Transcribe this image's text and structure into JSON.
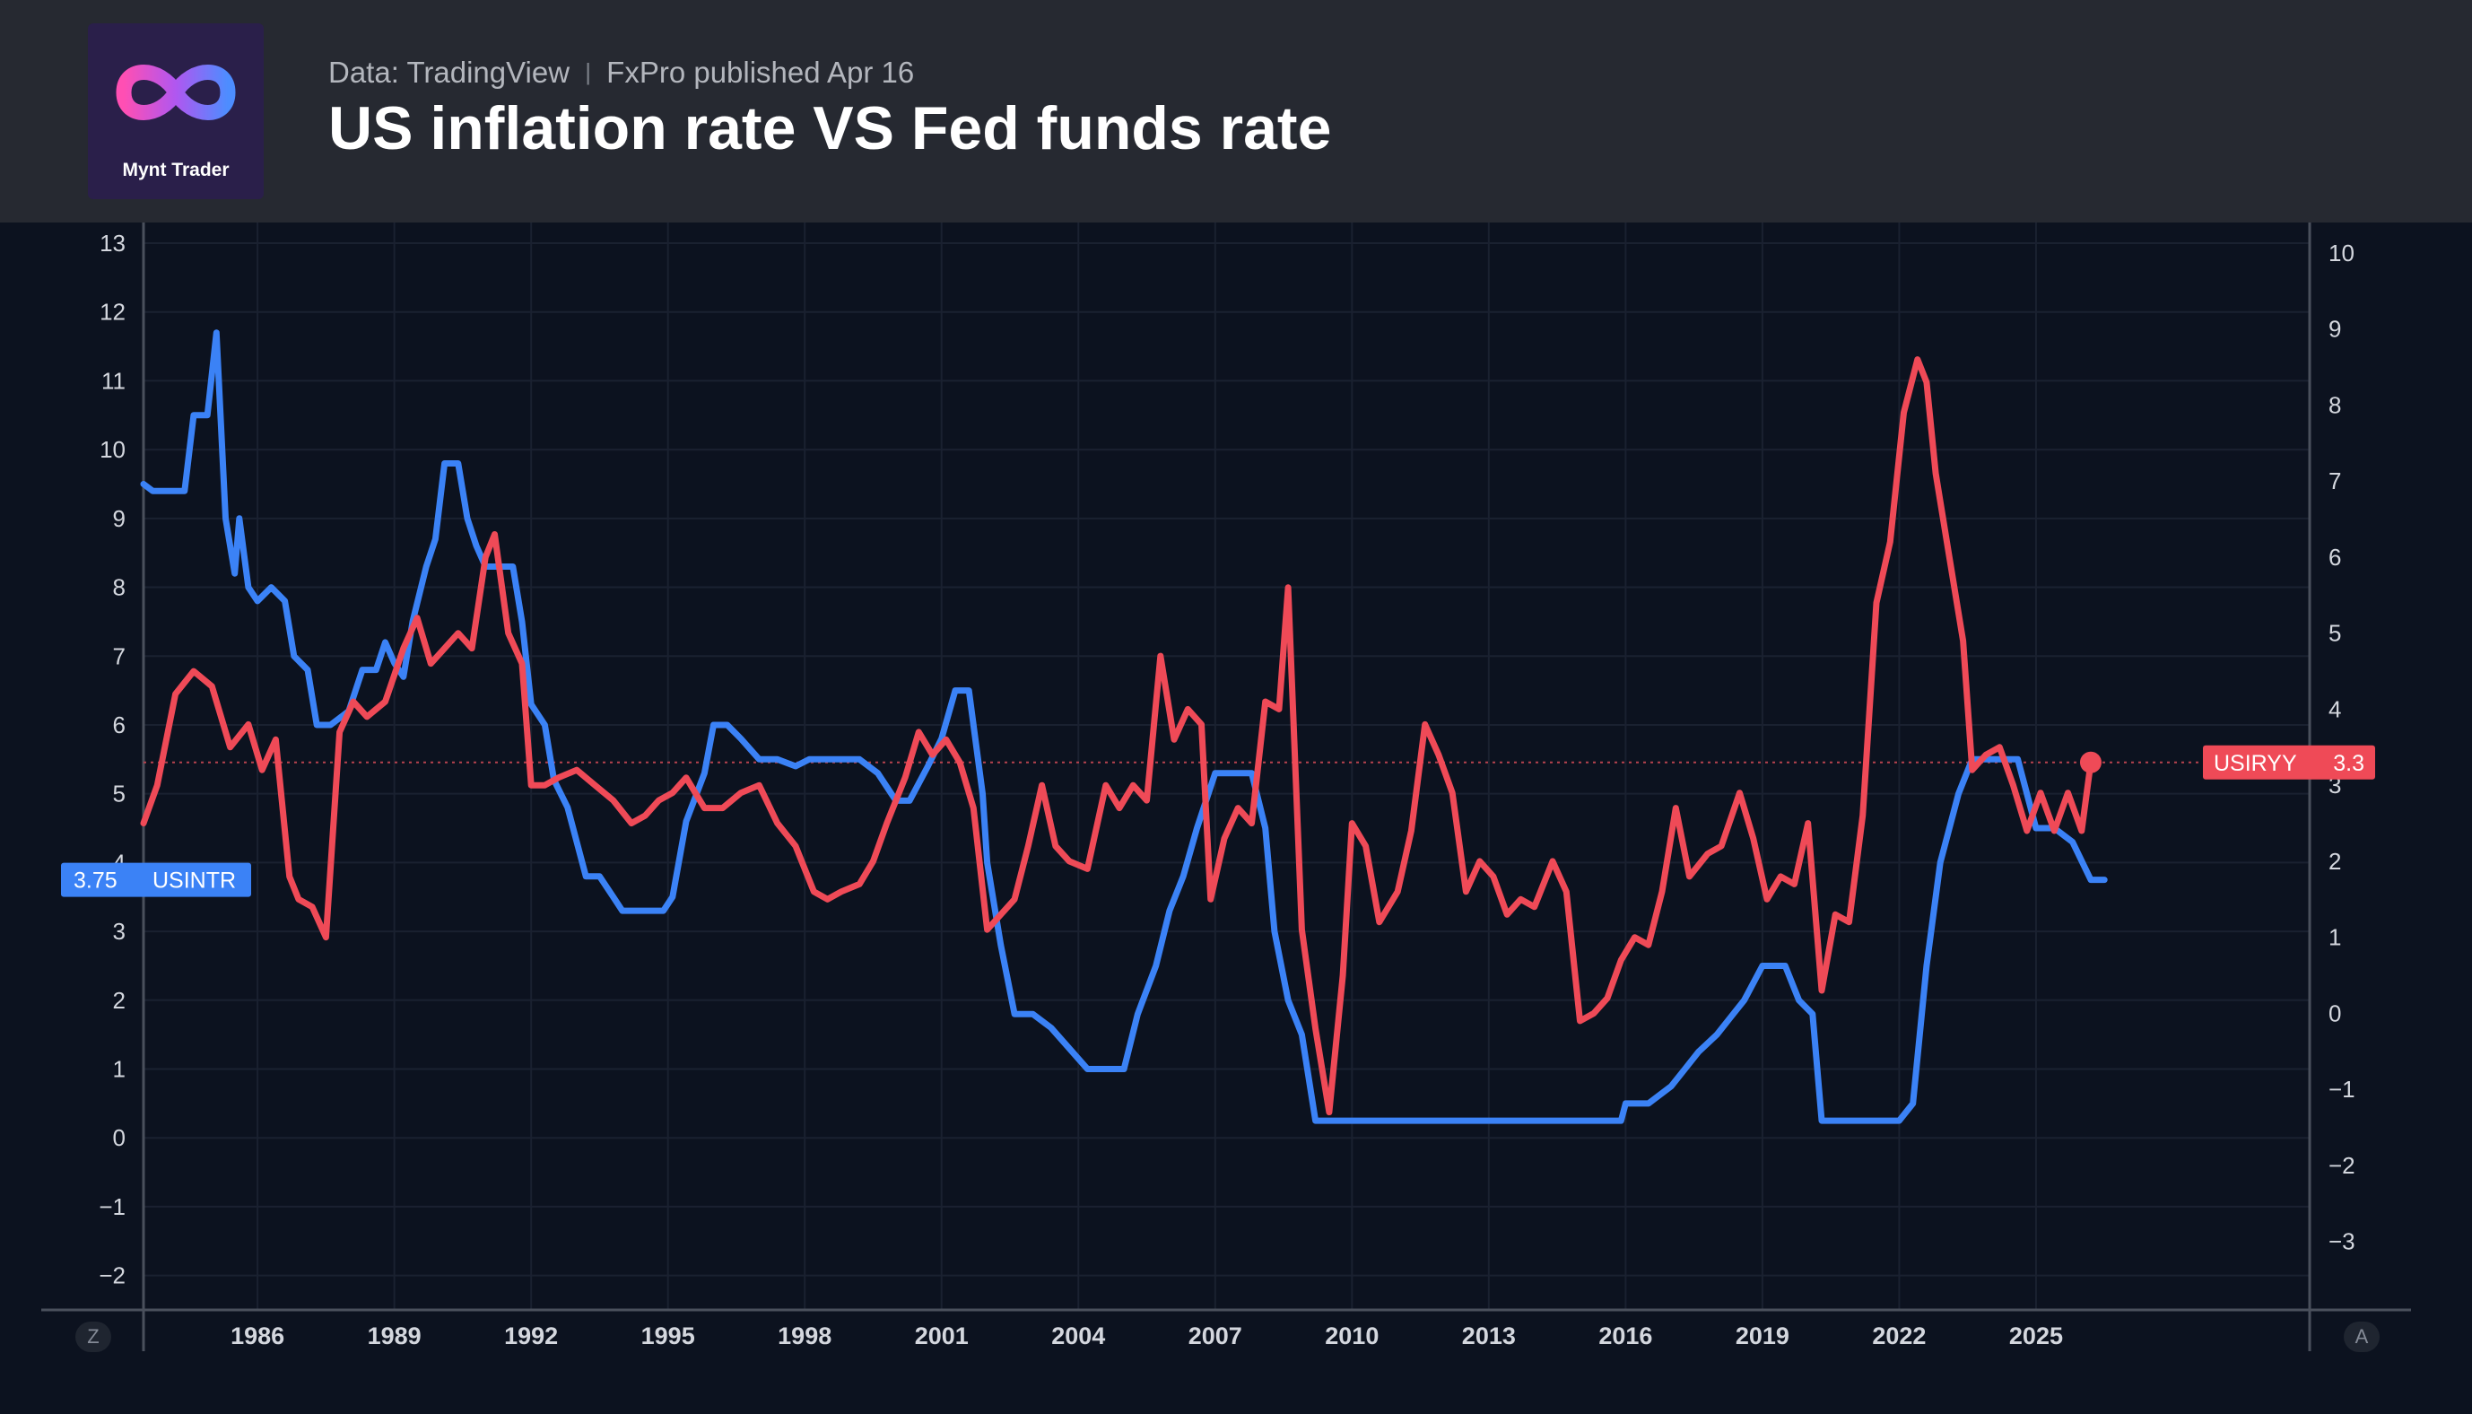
{
  "header": {
    "logo_text": "Mynt Trader",
    "source": "Data: TradingView",
    "published": "FxPro published Apr 16",
    "title": "US inflation rate VS Fed funds rate"
  },
  "controls": {
    "left_mode": "Z",
    "right_mode": "A"
  },
  "chart_data": {
    "type": "line",
    "x_ticks": [
      "1986",
      "1989",
      "1992",
      "1995",
      "1998",
      "2001",
      "2004",
      "2007",
      "2010",
      "2013",
      "2016",
      "2019",
      "2022",
      "2025"
    ],
    "left_axis": {
      "ticks": [
        -2,
        -1,
        0,
        1,
        2,
        3,
        4,
        5,
        6,
        7,
        8,
        9,
        10,
        11,
        12,
        13
      ],
      "range": [
        -2.5,
        13.3
      ]
    },
    "right_axis": {
      "ticks": [
        -3,
        -2,
        -1,
        0,
        1,
        2,
        3,
        4,
        5,
        6,
        7,
        8,
        9,
        10
      ],
      "range": [
        -3.9,
        10.4
      ]
    },
    "series": [
      {
        "name": "USINTR",
        "axis": "left",
        "color": "#3b82f6",
        "last_value": "3.75",
        "points": [
          [
            1983.5,
            9.5
          ],
          [
            1983.7,
            9.4
          ],
          [
            1984.0,
            9.4
          ],
          [
            1984.4,
            9.4
          ],
          [
            1984.6,
            10.5
          ],
          [
            1984.9,
            10.5
          ],
          [
            1985.1,
            11.7
          ],
          [
            1985.3,
            9.0
          ],
          [
            1985.5,
            8.2
          ],
          [
            1985.6,
            9.0
          ],
          [
            1985.8,
            8.0
          ],
          [
            1986.0,
            7.8
          ],
          [
            1986.3,
            8.0
          ],
          [
            1986.6,
            7.8
          ],
          [
            1986.8,
            7.0
          ],
          [
            1987.1,
            6.8
          ],
          [
            1987.3,
            6.0
          ],
          [
            1987.6,
            6.0
          ],
          [
            1988.0,
            6.2
          ],
          [
            1988.3,
            6.8
          ],
          [
            1988.6,
            6.8
          ],
          [
            1988.8,
            7.2
          ],
          [
            1989.0,
            6.9
          ],
          [
            1989.2,
            6.7
          ],
          [
            1989.4,
            7.5
          ],
          [
            1989.7,
            8.3
          ],
          [
            1989.9,
            8.7
          ],
          [
            1990.1,
            9.8
          ],
          [
            1990.4,
            9.8
          ],
          [
            1990.6,
            9.0
          ],
          [
            1990.8,
            8.6
          ],
          [
            1991.0,
            8.3
          ],
          [
            1991.3,
            8.3
          ],
          [
            1991.6,
            8.3
          ],
          [
            1991.8,
            7.5
          ],
          [
            1992.0,
            6.3
          ],
          [
            1992.3,
            6.0
          ],
          [
            1992.5,
            5.2
          ],
          [
            1992.8,
            4.8
          ],
          [
            1993.0,
            4.3
          ],
          [
            1993.2,
            3.8
          ],
          [
            1993.5,
            3.8
          ],
          [
            1993.8,
            3.5
          ],
          [
            1994.0,
            3.3
          ],
          [
            1994.5,
            3.3
          ],
          [
            1994.9,
            3.3
          ],
          [
            1995.1,
            3.5
          ],
          [
            1995.4,
            4.6
          ],
          [
            1995.8,
            5.3
          ],
          [
            1996.0,
            6.0
          ],
          [
            1996.3,
            6.0
          ],
          [
            1996.6,
            5.8
          ],
          [
            1997.0,
            5.5
          ],
          [
            1997.4,
            5.5
          ],
          [
            1997.8,
            5.4
          ],
          [
            1998.1,
            5.5
          ],
          [
            1998.4,
            5.5
          ],
          [
            1998.9,
            5.5
          ],
          [
            1999.2,
            5.5
          ],
          [
            1999.6,
            5.3
          ],
          [
            2000.0,
            4.9
          ],
          [
            2000.3,
            4.9
          ],
          [
            2000.7,
            5.4
          ],
          [
            2001.0,
            5.8
          ],
          [
            2001.3,
            6.5
          ],
          [
            2001.6,
            6.5
          ],
          [
            2001.9,
            5.0
          ],
          [
            2002.0,
            4.0
          ],
          [
            2002.3,
            2.8
          ],
          [
            2002.6,
            1.8
          ],
          [
            2003.0,
            1.8
          ],
          [
            2003.4,
            1.6
          ],
          [
            2003.8,
            1.3
          ],
          [
            2004.2,
            1.0
          ],
          [
            2004.6,
            1.0
          ],
          [
            2005.0,
            1.0
          ],
          [
            2005.3,
            1.8
          ],
          [
            2005.7,
            2.5
          ],
          [
            2006.0,
            3.3
          ],
          [
            2006.3,
            3.8
          ],
          [
            2006.6,
            4.5
          ],
          [
            2007.0,
            5.3
          ],
          [
            2007.4,
            5.3
          ],
          [
            2007.8,
            5.3
          ],
          [
            2008.1,
            4.5
          ],
          [
            2008.3,
            3.0
          ],
          [
            2008.6,
            2.0
          ],
          [
            2008.9,
            1.5
          ],
          [
            2009.2,
            0.25
          ],
          [
            2009.6,
            0.25
          ],
          [
            2011.0,
            0.25
          ],
          [
            2013.0,
            0.25
          ],
          [
            2015.0,
            0.25
          ],
          [
            2015.9,
            0.25
          ],
          [
            2016.0,
            0.5
          ],
          [
            2016.5,
            0.5
          ],
          [
            2017.0,
            0.75
          ],
          [
            2017.3,
            1.0
          ],
          [
            2017.6,
            1.25
          ],
          [
            2018.0,
            1.5
          ],
          [
            2018.3,
            1.75
          ],
          [
            2018.6,
            2.0
          ],
          [
            2019.0,
            2.5
          ],
          [
            2019.5,
            2.5
          ],
          [
            2019.8,
            2.0
          ],
          [
            2020.1,
            1.8
          ],
          [
            2020.3,
            0.25
          ],
          [
            2021.0,
            0.25
          ],
          [
            2022.0,
            0.25
          ],
          [
            2022.3,
            0.5
          ],
          [
            2022.6,
            2.5
          ],
          [
            2022.9,
            4.0
          ],
          [
            2023.3,
            5.0
          ],
          [
            2023.6,
            5.5
          ],
          [
            2024.0,
            5.5
          ],
          [
            2024.6,
            5.5
          ],
          [
            2024.8,
            5.0
          ],
          [
            2025.0,
            4.5
          ],
          [
            2025.4,
            4.5
          ],
          [
            2025.8,
            4.3
          ],
          [
            2026.2,
            3.75
          ],
          [
            2026.5,
            3.75
          ]
        ]
      },
      {
        "name": "USIRYY",
        "axis": "right",
        "color": "#ef4a57",
        "last_value": "3.3",
        "points": [
          [
            1983.5,
            2.5
          ],
          [
            1983.8,
            3.0
          ],
          [
            1984.2,
            4.2
          ],
          [
            1984.6,
            4.5
          ],
          [
            1985.0,
            4.3
          ],
          [
            1985.4,
            3.5
          ],
          [
            1985.8,
            3.8
          ],
          [
            1986.1,
            3.2
          ],
          [
            1986.4,
            3.6
          ],
          [
            1986.7,
            1.8
          ],
          [
            1986.9,
            1.5
          ],
          [
            1987.2,
            1.4
          ],
          [
            1987.5,
            1.0
          ],
          [
            1987.8,
            3.7
          ],
          [
            1988.1,
            4.1
          ],
          [
            1988.4,
            3.9
          ],
          [
            1988.8,
            4.1
          ],
          [
            1989.2,
            4.8
          ],
          [
            1989.5,
            5.2
          ],
          [
            1989.8,
            4.6
          ],
          [
            1990.1,
            4.8
          ],
          [
            1990.4,
            5.0
          ],
          [
            1990.7,
            4.8
          ],
          [
            1991.0,
            6.0
          ],
          [
            1991.2,
            6.3
          ],
          [
            1991.5,
            5.0
          ],
          [
            1991.8,
            4.6
          ],
          [
            1992.0,
            3.0
          ],
          [
            1992.3,
            3.0
          ],
          [
            1992.6,
            3.1
          ],
          [
            1993.0,
            3.2
          ],
          [
            1993.4,
            3.0
          ],
          [
            1993.8,
            2.8
          ],
          [
            1994.2,
            2.5
          ],
          [
            1994.5,
            2.6
          ],
          [
            1994.8,
            2.8
          ],
          [
            1995.1,
            2.9
          ],
          [
            1995.4,
            3.1
          ],
          [
            1995.8,
            2.7
          ],
          [
            1996.2,
            2.7
          ],
          [
            1996.6,
            2.9
          ],
          [
            1997.0,
            3.0
          ],
          [
            1997.4,
            2.5
          ],
          [
            1997.8,
            2.2
          ],
          [
            1998.2,
            1.6
          ],
          [
            1998.5,
            1.5
          ],
          [
            1998.8,
            1.6
          ],
          [
            1999.2,
            1.7
          ],
          [
            1999.5,
            2.0
          ],
          [
            1999.8,
            2.5
          ],
          [
            2000.2,
            3.1
          ],
          [
            2000.5,
            3.7
          ],
          [
            2000.8,
            3.4
          ],
          [
            2001.1,
            3.6
          ],
          [
            2001.4,
            3.3
          ],
          [
            2001.7,
            2.7
          ],
          [
            2002.0,
            1.1
          ],
          [
            2002.3,
            1.3
          ],
          [
            2002.6,
            1.5
          ],
          [
            2002.9,
            2.2
          ],
          [
            2003.2,
            3.0
          ],
          [
            2003.5,
            2.2
          ],
          [
            2003.8,
            2.0
          ],
          [
            2004.2,
            1.9
          ],
          [
            2004.6,
            3.0
          ],
          [
            2004.9,
            2.7
          ],
          [
            2005.2,
            3.0
          ],
          [
            2005.5,
            2.8
          ],
          [
            2005.8,
            4.7
          ],
          [
            2006.1,
            3.6
          ],
          [
            2006.4,
            4.0
          ],
          [
            2006.7,
            3.8
          ],
          [
            2006.9,
            1.5
          ],
          [
            2007.2,
            2.3
          ],
          [
            2007.5,
            2.7
          ],
          [
            2007.8,
            2.5
          ],
          [
            2008.1,
            4.1
          ],
          [
            2008.4,
            4.0
          ],
          [
            2008.6,
            5.6
          ],
          [
            2008.9,
            1.1
          ],
          [
            2009.2,
            -0.2
          ],
          [
            2009.5,
            -1.3
          ],
          [
            2009.8,
            0.5
          ],
          [
            2010.0,
            2.5
          ],
          [
            2010.3,
            2.2
          ],
          [
            2010.6,
            1.2
          ],
          [
            2011.0,
            1.6
          ],
          [
            2011.3,
            2.4
          ],
          [
            2011.6,
            3.8
          ],
          [
            2011.9,
            3.4
          ],
          [
            2012.2,
            2.9
          ],
          [
            2012.5,
            1.6
          ],
          [
            2012.8,
            2.0
          ],
          [
            2013.1,
            1.8
          ],
          [
            2013.4,
            1.3
          ],
          [
            2013.7,
            1.5
          ],
          [
            2014.0,
            1.4
          ],
          [
            2014.4,
            2.0
          ],
          [
            2014.7,
            1.6
          ],
          [
            2015.0,
            -0.1
          ],
          [
            2015.3,
            0.0
          ],
          [
            2015.6,
            0.2
          ],
          [
            2015.9,
            0.7
          ],
          [
            2016.2,
            1.0
          ],
          [
            2016.5,
            0.9
          ],
          [
            2016.8,
            1.6
          ],
          [
            2017.1,
            2.7
          ],
          [
            2017.4,
            1.8
          ],
          [
            2017.8,
            2.1
          ],
          [
            2018.1,
            2.2
          ],
          [
            2018.5,
            2.9
          ],
          [
            2018.8,
            2.3
          ],
          [
            2019.1,
            1.5
          ],
          [
            2019.4,
            1.8
          ],
          [
            2019.7,
            1.7
          ],
          [
            2020.0,
            2.5
          ],
          [
            2020.3,
            0.3
          ],
          [
            2020.6,
            1.3
          ],
          [
            2020.9,
            1.2
          ],
          [
            2021.2,
            2.6
          ],
          [
            2021.5,
            5.4
          ],
          [
            2021.8,
            6.2
          ],
          [
            2022.1,
            7.9
          ],
          [
            2022.4,
            8.6
          ],
          [
            2022.6,
            8.3
          ],
          [
            2022.8,
            7.1
          ],
          [
            2023.1,
            6.0
          ],
          [
            2023.4,
            4.9
          ],
          [
            2023.6,
            3.2
          ],
          [
            2023.9,
            3.4
          ],
          [
            2024.2,
            3.5
          ],
          [
            2024.5,
            3.0
          ],
          [
            2024.8,
            2.4
          ],
          [
            2025.1,
            2.9
          ],
          [
            2025.4,
            2.4
          ],
          [
            2025.7,
            2.9
          ],
          [
            2026.0,
            2.4
          ],
          [
            2026.2,
            3.3
          ]
        ]
      }
    ],
    "reference_line": {
      "axis": "right",
      "value": 3.3,
      "style": "dotted"
    },
    "grid": true
  }
}
